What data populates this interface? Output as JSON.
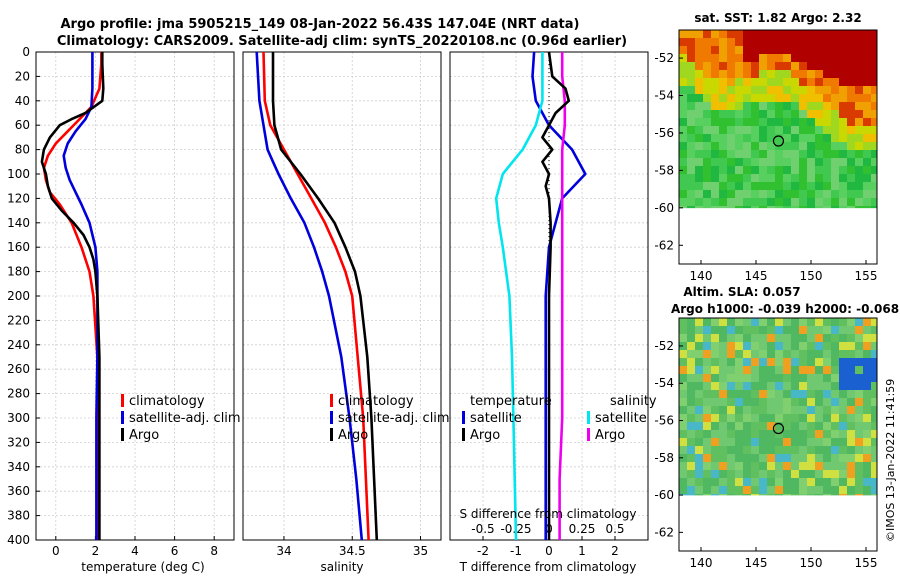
{
  "figure": {
    "title_line1": "Argo profile: jma 5905215_149 08-Jan-2022 56.43S 147.04E (NRT data)",
    "title_line2": "Climatology: CARS2009. Satellite-adj clim: synTS_20220108.nc (0.96d earlier)",
    "credit": "©IMOS 13-Jan-2022 11:41:59"
  },
  "colors": {
    "climatology": "#ff0000",
    "satellite_adj": "#0000dd",
    "argo": "#000000",
    "sal_satellite": "#00e5ee",
    "sal_argo": "#ee00ee",
    "grid": "#cfcfcf"
  },
  "chart_data": [
    {
      "type": "line",
      "id": "temperature",
      "xlabel": "temperature (deg C)",
      "xlim": [
        -1,
        9
      ],
      "xticks": [
        0,
        2,
        4,
        6,
        8
      ],
      "ylim": [
        0,
        400
      ],
      "yticks": [
        0,
        20,
        40,
        60,
        80,
        100,
        120,
        140,
        160,
        180,
        200,
        220,
        240,
        260,
        280,
        300,
        320,
        340,
        360,
        380,
        400
      ],
      "legend": [
        "climatology",
        "satellite-adj. clim",
        "Argo"
      ],
      "series": [
        {
          "name": "climatology",
          "depth": [
            0,
            10,
            30,
            45,
            55,
            65,
            75,
            85,
            95,
            105,
            115,
            125,
            140,
            160,
            180,
            200,
            250,
            300,
            350,
            400
          ],
          "values": [
            2.3,
            2.3,
            2.2,
            1.8,
            1.2,
            0.6,
            0.0,
            -0.4,
            -0.6,
            -0.5,
            -0.3,
            0.2,
            0.8,
            1.3,
            1.7,
            1.9,
            2.1,
            2.15,
            2.15,
            2.15
          ]
        },
        {
          "name": "satellite-adj. clim",
          "depth": [
            0,
            10,
            30,
            45,
            55,
            65,
            75,
            85,
            95,
            105,
            115,
            125,
            140,
            160,
            180,
            200,
            250,
            300,
            350,
            400
          ],
          "values": [
            1.85,
            1.85,
            1.85,
            1.8,
            1.5,
            1.0,
            0.6,
            0.4,
            0.5,
            0.7,
            1.0,
            1.3,
            1.7,
            2.0,
            2.1,
            2.1,
            2.1,
            2.05,
            2.05,
            2.05
          ]
        },
        {
          "name": "Argo",
          "depth": [
            0,
            10,
            30,
            40,
            50,
            55,
            60,
            70,
            80,
            90,
            95,
            100,
            110,
            120,
            130,
            140,
            150,
            160,
            170,
            180,
            200,
            250,
            300,
            350,
            400
          ],
          "values": [
            2.35,
            2.35,
            2.4,
            2.35,
            1.5,
            0.8,
            0.2,
            -0.3,
            -0.6,
            -0.7,
            -0.6,
            -0.5,
            -0.4,
            -0.2,
            0.3,
            0.9,
            1.4,
            1.7,
            1.9,
            2.0,
            2.1,
            2.2,
            2.2,
            2.2,
            2.2
          ]
        }
      ]
    },
    {
      "type": "line",
      "id": "salinity",
      "xlabel": "salinity",
      "xlim": [
        33.7,
        35.15
      ],
      "xticks": [
        34,
        34.5,
        35
      ],
      "ylim": [
        0,
        400
      ],
      "legend": [
        "climatology",
        "satellite-adj. clim",
        "Argo"
      ],
      "series": [
        {
          "name": "climatology",
          "depth": [
            0,
            40,
            60,
            80,
            100,
            120,
            140,
            160,
            180,
            200,
            250,
            300,
            350,
            400
          ],
          "values": [
            33.85,
            33.86,
            33.9,
            34.0,
            34.1,
            34.2,
            34.3,
            34.38,
            34.45,
            34.5,
            34.54,
            34.58,
            34.6,
            34.62
          ]
        },
        {
          "name": "satellite-adj. clim",
          "depth": [
            0,
            40,
            60,
            80,
            90,
            100,
            120,
            140,
            160,
            180,
            200,
            250,
            300,
            350,
            400
          ],
          "values": [
            33.8,
            33.82,
            33.85,
            33.88,
            33.92,
            33.96,
            34.05,
            34.15,
            34.22,
            34.28,
            34.33,
            34.42,
            34.48,
            34.53,
            34.57
          ]
        },
        {
          "name": "Argo",
          "depth": [
            0,
            40,
            60,
            80,
            100,
            120,
            140,
            160,
            180,
            200,
            250,
            300,
            350,
            400
          ],
          "values": [
            33.92,
            33.92,
            33.93,
            33.98,
            34.12,
            34.25,
            34.37,
            34.45,
            34.52,
            34.56,
            34.61,
            34.64,
            34.66,
            34.68
          ]
        }
      ]
    },
    {
      "type": "line",
      "id": "difference",
      "xlabel": "T difference from climatology",
      "xlabel_top": "S difference from climatology",
      "xlim": [
        -3,
        3
      ],
      "xticks": [
        -2,
        -1,
        0,
        1,
        2
      ],
      "xticks_top": [
        "-0.5",
        "-0.25",
        "0",
        "0.25",
        "0.5"
      ],
      "ylim": [
        0,
        400
      ],
      "legend_temperature_title": "temperature",
      "legend_salinity_title": "salinity",
      "legend_temperature": [
        "satellite",
        "Argo"
      ],
      "legend_salinity": [
        "satellite",
        "Argo"
      ],
      "series": [
        {
          "name": "temperature satellite",
          "depth": [
            0,
            20,
            40,
            60,
            80,
            100,
            120,
            140,
            160,
            200,
            250,
            300,
            350,
            400
          ],
          "values": [
            -0.45,
            -0.5,
            -0.4,
            0.0,
            0.7,
            1.1,
            0.4,
            0.2,
            0.0,
            -0.1,
            -0.1,
            -0.1,
            -0.1,
            -0.1
          ]
        },
        {
          "name": "temperature Argo",
          "depth": [
            0,
            20,
            30,
            40,
            50,
            60,
            70,
            80,
            90,
            100,
            110,
            120,
            140,
            160,
            200,
            250,
            300,
            350,
            400
          ],
          "values": [
            0.0,
            0.1,
            0.5,
            0.6,
            0.2,
            0.0,
            -0.2,
            0.1,
            -0.2,
            0.0,
            -0.1,
            0.0,
            0.05,
            0.05,
            0.0,
            0.0,
            0.0,
            0.0,
            0.0
          ]
        },
        {
          "name": "salinity satellite",
          "depth": [
            0,
            20,
            40,
            60,
            80,
            100,
            120,
            140,
            160,
            200,
            250,
            300,
            350,
            400
          ],
          "values": [
            -0.05,
            -0.05,
            -0.05,
            -0.1,
            -0.2,
            -0.35,
            -0.4,
            -0.38,
            -0.35,
            -0.3,
            -0.28,
            -0.27,
            -0.26,
            -0.25
          ]
        },
        {
          "name": "salinity Argo",
          "depth": [
            0,
            20,
            40,
            60,
            80,
            100,
            120,
            140,
            160,
            200,
            250,
            300,
            350,
            400
          ],
          "values": [
            0.1,
            0.1,
            0.12,
            0.12,
            0.1,
            0.1,
            0.1,
            0.1,
            0.1,
            0.1,
            0.1,
            0.1,
            0.08,
            0.08
          ]
        }
      ]
    },
    {
      "type": "heatmap",
      "id": "sst_map",
      "title": "sat. SST: 1.82 Argo: 2.32",
      "xlim": [
        138,
        156
      ],
      "ylim": [
        -63,
        -50.5
      ],
      "xticks": [
        140,
        145,
        150,
        155
      ],
      "yticks": [
        -52,
        -54,
        -56,
        -58,
        -60,
        -62
      ],
      "argo_position": [
        147.04,
        -56.43
      ]
    },
    {
      "type": "heatmap",
      "id": "sla_map",
      "title_line1": "Altim. SLA: 0.057",
      "title_line2": "Argo h1000: -0.039 h2000: -0.068",
      "xlim": [
        138,
        156
      ],
      "ylim": [
        -63,
        -50.5
      ],
      "xticks": [
        140,
        145,
        150,
        155
      ],
      "yticks": [
        -52,
        -54,
        -56,
        -58,
        -60,
        -62
      ],
      "argo_position": [
        147.04,
        -56.43
      ]
    }
  ]
}
